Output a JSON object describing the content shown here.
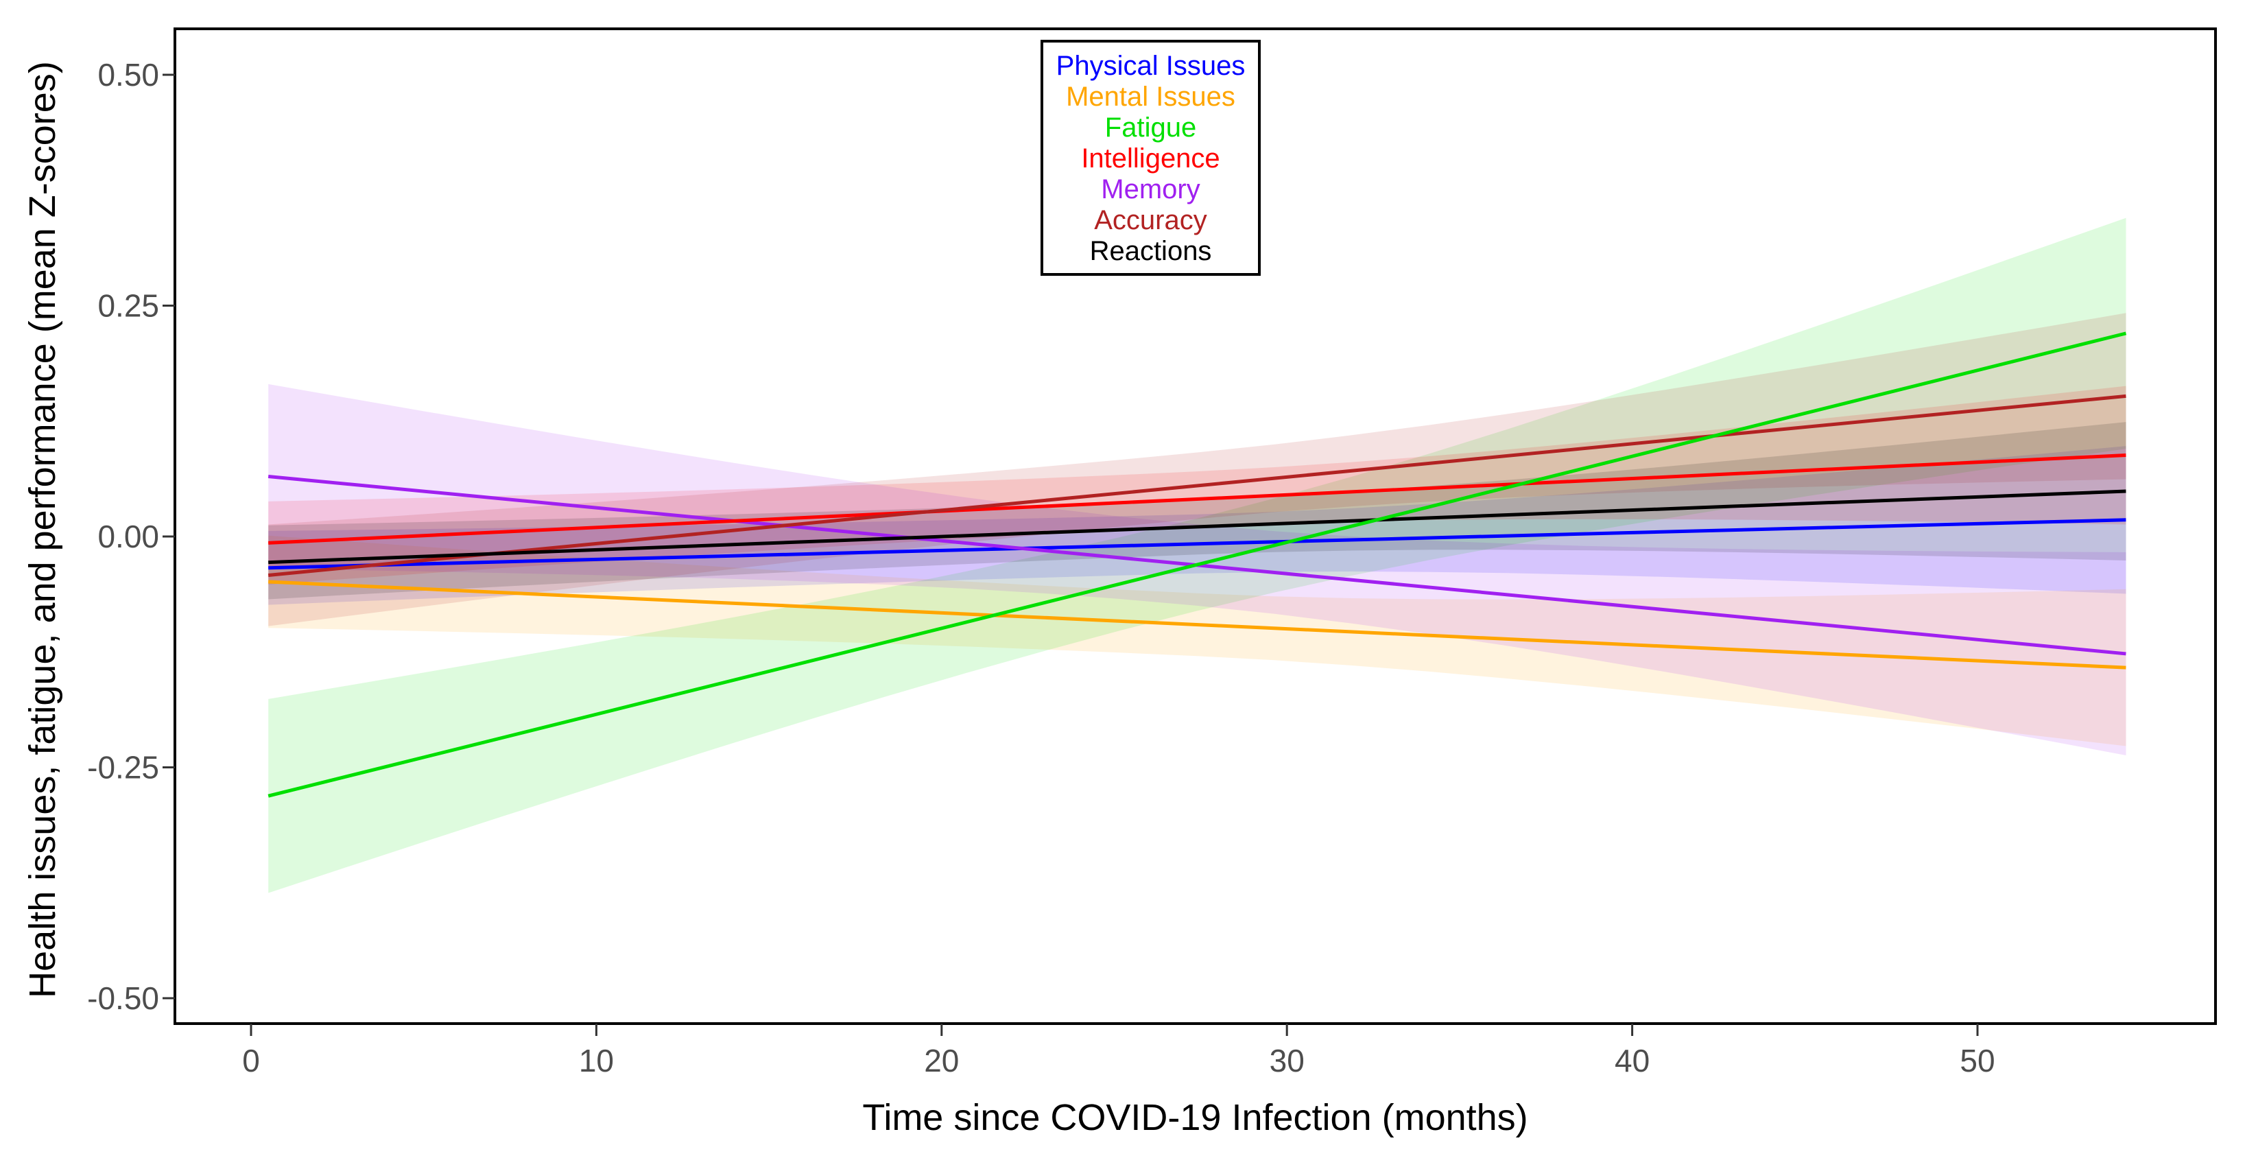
{
  "chart_data": {
    "type": "line",
    "title": "",
    "xlabel": "Time since COVID-19 Infection (months)",
    "ylabel": "Health issues, fatigue, and performance (mean Z-scores)",
    "x_ticks": [
      {
        "value": 0,
        "label": "0"
      },
      {
        "value": 10,
        "label": "10"
      },
      {
        "value": 20,
        "label": "20"
      },
      {
        "value": 30,
        "label": "30"
      },
      {
        "value": 40,
        "label": "40"
      },
      {
        "value": 50,
        "label": "50"
      }
    ],
    "y_ticks": [
      {
        "value": 0.5,
        "label": "0.50"
      },
      {
        "value": 0.25,
        "label": "0.25"
      },
      {
        "value": 0.0,
        "label": "0.00"
      },
      {
        "value": -0.25,
        "label": "-0.25"
      },
      {
        "value": -0.5,
        "label": "-0.50"
      }
    ],
    "xlim": [
      -2.2,
      56.9
    ],
    "ylim": [
      -0.53,
      0.55
    ],
    "grid": false,
    "legend_position": "top-center",
    "x_data_range": [
      0.5,
      54.3
    ],
    "series": [
      {
        "name": "Physical Issues",
        "color": "#0000FF",
        "x": [
          0.5,
          54.3
        ],
        "y": [
          -0.034,
          0.018
        ],
        "ci_half_start": 0.04,
        "ci_half_end": 0.08
      },
      {
        "name": "Mental Issues",
        "color": "#FFA500",
        "x": [
          0.5,
          54.3
        ],
        "y": [
          -0.049,
          -0.142
        ],
        "ci_half_start": 0.05,
        "ci_half_end": 0.085
      },
      {
        "name": "Fatigue",
        "color": "#00DF00",
        "x": [
          0.5,
          54.3
        ],
        "y": [
          -0.281,
          0.22
        ],
        "ci_half_start": 0.105,
        "ci_half_end": 0.125
      },
      {
        "name": "Intelligence",
        "color": "#FF0000",
        "x": [
          0.5,
          54.3
        ],
        "y": [
          -0.007,
          0.088
        ],
        "ci_half_start": 0.045,
        "ci_half_end": 0.075
      },
      {
        "name": "Memory",
        "color": "#A020F0",
        "x": [
          0.5,
          54.3
        ],
        "y": [
          0.065,
          -0.127
        ],
        "ci_half_start": 0.1,
        "ci_half_end": 0.11
      },
      {
        "name": "Accuracy",
        "color": "#B22222",
        "x": [
          0.5,
          54.3
        ],
        "y": [
          -0.042,
          0.152
        ],
        "ci_half_start": 0.055,
        "ci_half_end": 0.09
      },
      {
        "name": "Reactions",
        "color": "#000000",
        "x": [
          0.5,
          54.3
        ],
        "y": [
          -0.028,
          0.049
        ],
        "ci_half_start": 0.04,
        "ci_half_end": 0.075
      }
    ],
    "ci_waist_factor": 0.4,
    "ci_opacity": 0.13,
    "tick_label_color": "#4d4d4d",
    "axis_color": "#000000",
    "panel_background": "#ffffff"
  }
}
